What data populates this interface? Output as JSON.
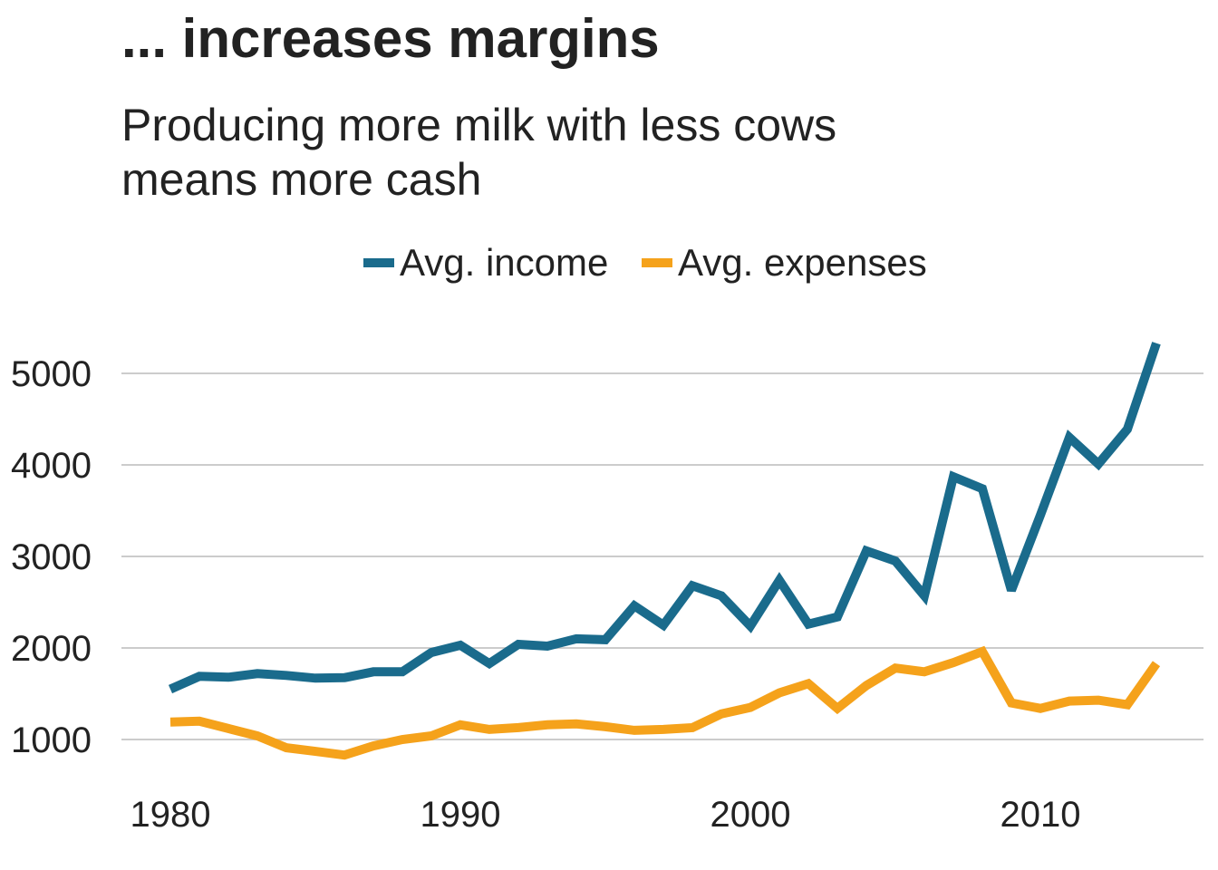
{
  "chart_data": {
    "type": "line",
    "title": "... increases margins",
    "subtitle_lines": [
      "Producing more milk with less cows",
      "means more cash"
    ],
    "xlabel": "",
    "ylabel": "",
    "xlim": [
      1980,
      2014
    ],
    "ylim": [
      800,
      5400
    ],
    "x_ticks": [
      1980,
      1990,
      2000,
      2010
    ],
    "y_ticks": [
      1000,
      2000,
      3000,
      4000,
      5000
    ],
    "grid": "horizontal",
    "legend_position": "top",
    "x": [
      1980,
      1981,
      1982,
      1983,
      1984,
      1985,
      1986,
      1987,
      1988,
      1989,
      1990,
      1991,
      1992,
      1993,
      1994,
      1995,
      1996,
      1997,
      1998,
      1999,
      2000,
      2001,
      2002,
      2003,
      2004,
      2005,
      2006,
      2007,
      2008,
      2009,
      2010,
      2011,
      2012,
      2013,
      2014
    ],
    "series": [
      {
        "name": "Avg. income",
        "color": "#1a6b8c",
        "values": [
          1550,
          1690,
          1680,
          1720,
          1700,
          1670,
          1675,
          1740,
          1740,
          1950,
          2030,
          1830,
          2040,
          2020,
          2100,
          2090,
          2460,
          2250,
          2680,
          2570,
          2240,
          2740,
          2260,
          2340,
          3060,
          2950,
          2570,
          3870,
          3740,
          2630,
          3450,
          4300,
          4010,
          4390,
          5330
        ]
      },
      {
        "name": "Avg. expenses",
        "color": "#f5a21b",
        "values": [
          1190,
          1200,
          1120,
          1040,
          910,
          870,
          830,
          930,
          1000,
          1040,
          1160,
          1110,
          1130,
          1160,
          1170,
          1140,
          1100,
          1110,
          1130,
          1280,
          1350,
          1510,
          1610,
          1340,
          1590,
          1780,
          1740,
          1840,
          1960,
          1400,
          1340,
          1420,
          1430,
          1380,
          1830
        ]
      }
    ]
  }
}
